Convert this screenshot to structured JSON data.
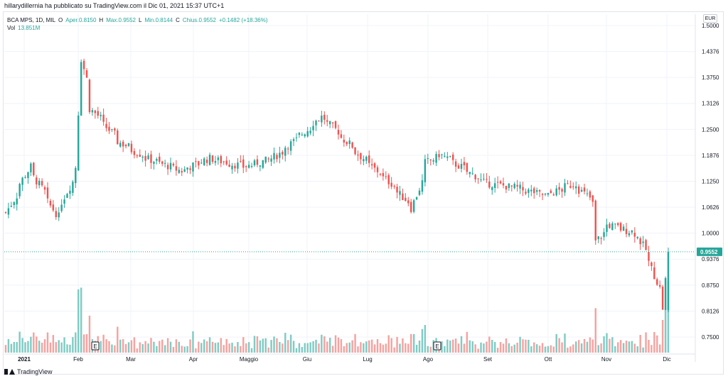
{
  "publisher_line": "hillarydillernia ha pubblicato su TradingView.com il Dic 01, 2021 15:37 UTC+1",
  "legend": {
    "symbol": "BCA MPS, 1D, MIL",
    "open_label": "O",
    "open_value": "Aper.0.8150",
    "high_label": "H",
    "high_value": "Max.0.9552",
    "low_label": "L",
    "low_value": "Min.0.8144",
    "close_label": "C",
    "close_value": "Chius.0.9552",
    "change": "+0.1482 (+18.36%)",
    "vol_label": "Vol",
    "vol_value": "13.851M"
  },
  "currency": "EUR",
  "brand": "TradingView",
  "colors": {
    "up": "#26a69a",
    "down": "#ef5350",
    "up_vol": "#80cbc4",
    "down_vol": "#f4a3a0",
    "grid": "#f0f3fa",
    "price_line": "#26a69a"
  },
  "chart_data": {
    "type": "candlestick",
    "symbol": "BCA MPS",
    "interval": "1D",
    "exchange": "MIL",
    "grid": true,
    "y_ticks": [
      "1.5000",
      "1.4376",
      "1.3750",
      "1.3126",
      "1.2500",
      "1.1876",
      "1.1250",
      "1.0626",
      "1.0000",
      "0.9376",
      "0.8750",
      "0.8126",
      "0.7500"
    ],
    "ylim": [
      0.72,
      1.5
    ],
    "x_ticks": [
      "2021",
      "Feb",
      "Mar",
      "Apr",
      "Maggio",
      "Giu",
      "Lug",
      "Ago",
      "Set",
      "Ott",
      "Nov",
      "Dic"
    ],
    "last_price": "0.9552",
    "earnings_markers": [
      "E",
      "E"
    ],
    "price_anchors_month_close": [
      [
        "2021-01-04",
        1.05
      ],
      [
        "2021-01-15",
        1.16
      ],
      [
        "2021-01-29",
        1.04
      ],
      [
        "2021-02-08",
        1.16
      ],
      [
        "2021-02-10",
        1.42
      ],
      [
        "2021-02-15",
        1.3
      ],
      [
        "2021-03-01",
        1.22
      ],
      [
        "2021-03-15",
        1.18
      ],
      [
        "2021-04-01",
        1.15
      ],
      [
        "2021-04-15",
        1.18
      ],
      [
        "2021-05-03",
        1.16
      ],
      [
        "2021-05-17",
        1.18
      ],
      [
        "2021-06-01",
        1.24
      ],
      [
        "2021-06-10",
        1.28
      ],
      [
        "2021-06-15",
        1.26
      ],
      [
        "2021-07-01",
        1.18
      ],
      [
        "2021-07-15",
        1.12
      ],
      [
        "2021-07-26",
        1.06
      ],
      [
        "2021-08-02",
        1.17
      ],
      [
        "2021-08-09",
        1.19
      ],
      [
        "2021-09-01",
        1.12
      ],
      [
        "2021-09-15",
        1.11
      ],
      [
        "2021-10-01",
        1.09
      ],
      [
        "2021-10-15",
        1.12
      ],
      [
        "2021-10-25",
        1.07
      ],
      [
        "2021-10-26",
        0.98
      ],
      [
        "2021-11-01",
        1.02
      ],
      [
        "2021-11-15",
        1.0
      ],
      [
        "2021-11-22",
        0.93
      ],
      [
        "2021-11-29",
        0.82
      ],
      [
        "2021-12-01",
        0.9552
      ]
    ]
  }
}
